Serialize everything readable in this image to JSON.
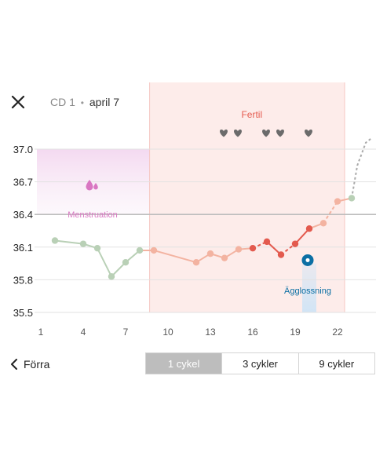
{
  "header": {
    "close_icon": "close-icon",
    "cycle_day": "CD 1",
    "separator": "•",
    "date": "april 7"
  },
  "chart_data": {
    "type": "line",
    "y_ticks": [
      "37.0",
      "36.7",
      "36.4",
      "36.1",
      "35.8",
      "35.5"
    ],
    "ylim": [
      35.5,
      37.0
    ],
    "x_ticks": [
      "1",
      "4",
      "7",
      "10",
      "13",
      "16",
      "19",
      "22"
    ],
    "xlim": [
      1,
      24.5
    ],
    "coverline": 36.4,
    "zones": {
      "menstruation": {
        "label": "Menstruation",
        "start": 1,
        "end": 8.7,
        "icon": "drop-icon",
        "color": "#d977c2"
      },
      "fertile": {
        "label": "Fertil",
        "start": 8.7,
        "end": 22.5,
        "color": "#e55b4f"
      },
      "ovulation": {
        "label": "Ägglossning",
        "day": 20,
        "icon": "egg-icon",
        "color": "#0b6fa4"
      }
    },
    "hearts": [
      14,
      15,
      17,
      18,
      20
    ],
    "points": [
      {
        "x": 2,
        "y": 36.16,
        "phase": "green"
      },
      {
        "x": 4,
        "y": 36.13,
        "phase": "green"
      },
      {
        "x": 5,
        "y": 36.09,
        "phase": "green"
      },
      {
        "x": 6,
        "y": 35.83,
        "phase": "green"
      },
      {
        "x": 7,
        "y": 35.96,
        "phase": "green"
      },
      {
        "x": 8,
        "y": 36.07,
        "phase": "green"
      },
      {
        "x": 9,
        "y": 36.07,
        "phase": "peach"
      },
      {
        "x": 12,
        "y": 35.96,
        "phase": "peach"
      },
      {
        "x": 13,
        "y": 36.04,
        "phase": "peach"
      },
      {
        "x": 14,
        "y": 36.0,
        "phase": "peach"
      },
      {
        "x": 15,
        "y": 36.08,
        "phase": "peach"
      },
      {
        "x": 16,
        "y": 36.09,
        "phase": "red"
      },
      {
        "x": 17,
        "y": 36.15,
        "phase": "red"
      },
      {
        "x": 18,
        "y": 36.03,
        "phase": "red"
      },
      {
        "x": 19,
        "y": 36.13,
        "phase": "red"
      },
      {
        "x": 20,
        "y": 36.27,
        "phase": "red"
      },
      {
        "x": 21,
        "y": 36.32,
        "phase": "peach"
      },
      {
        "x": 22,
        "y": 36.52,
        "phase": "peach"
      },
      {
        "x": 23,
        "y": 36.55,
        "phase": "green"
      }
    ],
    "projection": [
      {
        "x": 23,
        "y": 36.55
      },
      {
        "x": 23.4,
        "y": 36.85
      },
      {
        "x": 24.0,
        "y": 37.06
      },
      {
        "x": 24.4,
        "y": 37.1
      }
    ],
    "colors": {
      "green": "#b9d0b6",
      "peach": "#f3b3a1",
      "red": "#e35a4e",
      "grid": "#e2e2e2",
      "coverline": "#bdbdbd",
      "axis_text": "#555555"
    }
  },
  "footer": {
    "prev_label": "Förra",
    "tabs": [
      {
        "label": "1 cykel",
        "active": true
      },
      {
        "label": "3 cykler",
        "active": false
      },
      {
        "label": "9 cykler",
        "active": false
      }
    ]
  }
}
